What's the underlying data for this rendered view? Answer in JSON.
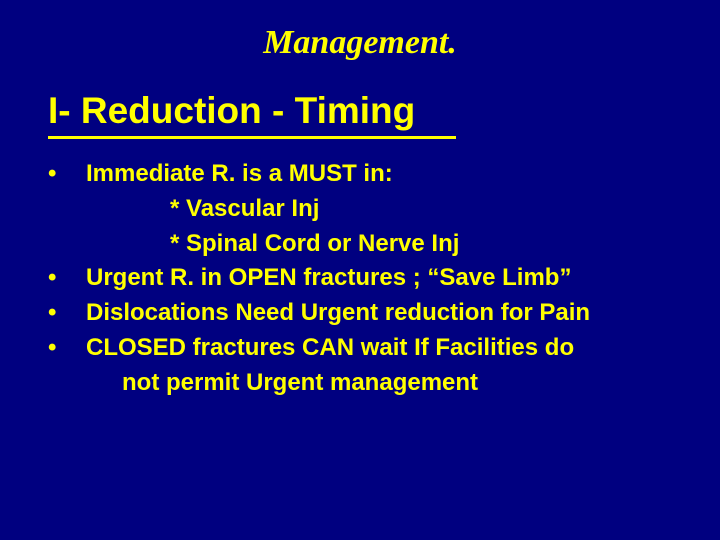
{
  "slide": {
    "title": "Management.",
    "subtitle": "I-  Reduction - Timing",
    "bullets": [
      {
        "marker": "•",
        "text": "Immediate R.  is a  MUST in:"
      },
      {
        "marker": "",
        "text": "* Vascular Inj",
        "indent": true
      },
      {
        "marker": "",
        "text": "* Spinal Cord or Nerve Inj",
        "indent": true
      },
      {
        "marker": "•",
        "text": "Urgent R. in OPEN fractures ; “Save Limb”"
      },
      {
        "marker": "•",
        "text": "Dislocations Need Urgent reduction for Pain"
      },
      {
        "marker": "•",
        "text": "CLOSED fractures CAN wait  If Facilities do"
      },
      {
        "marker": "",
        "text": "not permit Urgent management",
        "continuation": true
      }
    ],
    "colors": {
      "background": "#000080",
      "text": "#ffff00"
    },
    "font": {
      "title_size": 34,
      "subtitle_size": 37,
      "body_size": 24
    }
  }
}
